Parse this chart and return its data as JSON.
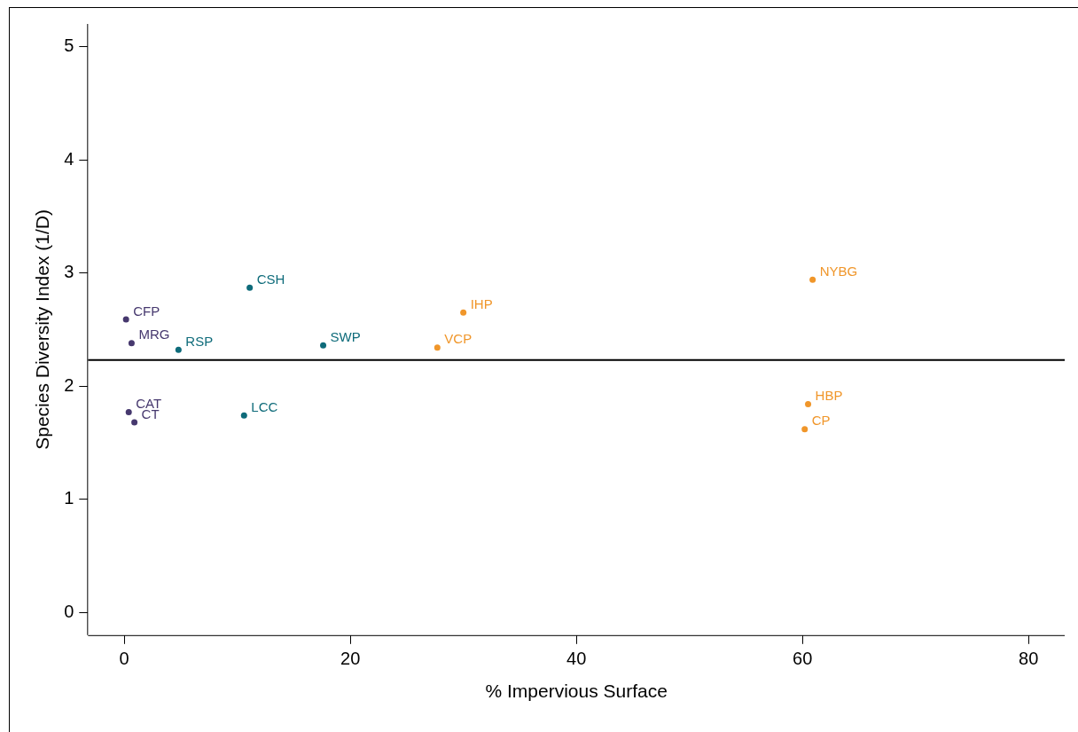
{
  "chart_data": {
    "type": "scatter",
    "xlabel": "% Impervious Surface",
    "ylabel": "Species Diversity Index (1/D)",
    "xlim": [
      -3.2,
      83.2
    ],
    "xticks": [
      0,
      20,
      40,
      60,
      80
    ],
    "ylim": [
      -0.2,
      5.2
    ],
    "yticks": [
      0,
      1,
      2,
      3,
      4,
      5
    ],
    "grid": false,
    "legend": false,
    "marker": "circle",
    "series": [
      {
        "color": "#46386e",
        "x": [
          0.16,
          0.65,
          0.4,
          0.9
        ],
        "values": [
          2.59,
          2.38,
          1.77,
          1.68
        ]
      },
      {
        "color": "#0e6b7a",
        "x": [
          4.8,
          11.1,
          17.6,
          10.6
        ],
        "values": [
          2.32,
          2.87,
          2.36,
          1.74
        ]
      },
      {
        "color": "#f0962a",
        "x": [
          30.0,
          27.7,
          60.9,
          60.5,
          60.2
        ],
        "values": [
          2.65,
          2.34,
          2.94,
          1.84,
          1.62
        ]
      }
    ],
    "ref_lines": [
      {
        "axis": "y",
        "value": 2.23,
        "color": "#000000",
        "line_style": "solid"
      }
    ],
    "annotations": [
      {
        "text": "CFP",
        "x": 0.16,
        "y": 2.59
      },
      {
        "text": "MRG",
        "x": 0.65,
        "y": 2.38
      },
      {
        "text": "CAT",
        "x": 0.4,
        "y": 1.77
      },
      {
        "text": "CT",
        "x": 0.9,
        "y": 1.68
      },
      {
        "text": "RSP",
        "x": 4.8,
        "y": 2.32
      },
      {
        "text": "CSH",
        "x": 11.1,
        "y": 2.87
      },
      {
        "text": "SWP",
        "x": 17.6,
        "y": 2.36
      },
      {
        "text": "LCC",
        "x": 10.6,
        "y": 1.74
      },
      {
        "text": "IHP",
        "x": 30.0,
        "y": 2.65
      },
      {
        "text": "VCP",
        "x": 27.7,
        "y": 2.34
      },
      {
        "text": "NYBG",
        "x": 60.9,
        "y": 2.94
      },
      {
        "text": "HBP",
        "x": 60.5,
        "y": 1.84
      },
      {
        "text": "CP",
        "x": 60.2,
        "y": 1.62
      }
    ]
  }
}
